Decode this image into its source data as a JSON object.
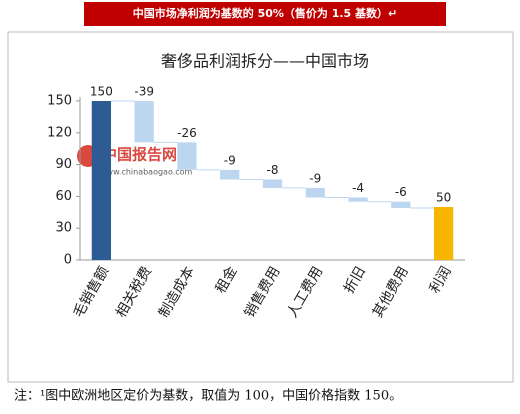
{
  "header": "中国市场净利润为基数的 50%（售价为 1.5 基数）↵",
  "chart_data": {
    "type": "waterfall",
    "title": "奢侈品利润拆分——中国市场",
    "categories": [
      "毛销售额",
      "相关税费",
      "制造成本",
      "租金",
      "销售费用",
      "人工费用",
      "折旧",
      "其他费用",
      "利润"
    ],
    "values": [
      150,
      -39,
      -26,
      -9,
      -8,
      -9,
      -4,
      -6,
      50
    ],
    "colors": [
      "#2d5b93",
      "#bcd6f0",
      "#bcd6f0",
      "#bcd6f0",
      "#bcd6f0",
      "#bcd6f0",
      "#bcd6f0",
      "#bcd6f0",
      "#f7b500"
    ],
    "ylim": [
      0,
      150
    ],
    "yticks": [
      0,
      30,
      60,
      90,
      120,
      150
    ],
    "grid": false
  },
  "watermark": {
    "name": "中国报告网",
    "url": "www.chinabaogao.com"
  },
  "footnote": "注：¹图中欧洲地区定价为基数，取值为 100，中国价格指数 150。"
}
